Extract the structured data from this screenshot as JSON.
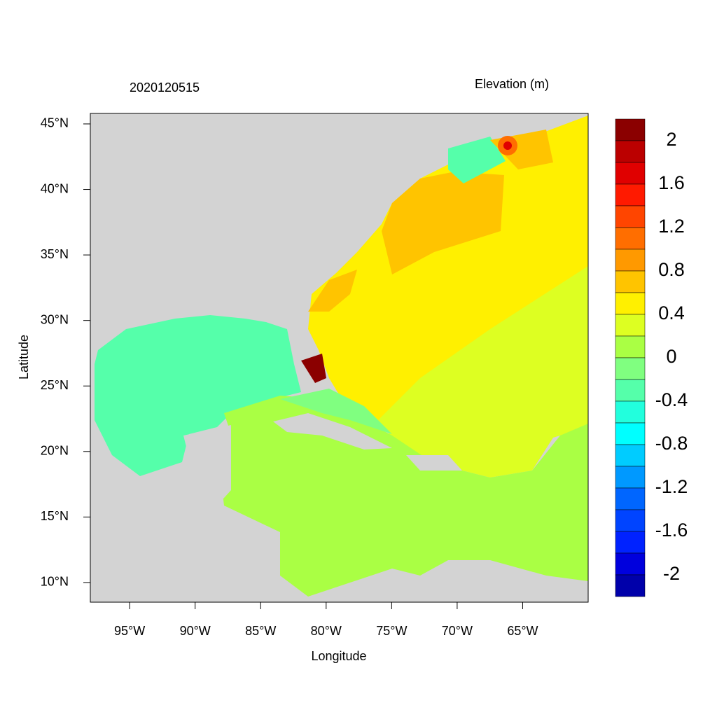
{
  "chart_data": {
    "type": "map",
    "title": "2020120515",
    "subtitle": "Elevation (m)",
    "x_label": "Longitude",
    "y_label": "Latitude",
    "xlim": [
      -98,
      -60
    ],
    "ylim": [
      8.5,
      45.8
    ],
    "xticks": [
      {
        "value": -95,
        "label": "95°W"
      },
      {
        "value": -90,
        "label": "90°W"
      },
      {
        "value": -85,
        "label": "85°W"
      },
      {
        "value": -80,
        "label": "80°W"
      },
      {
        "value": -75,
        "label": "75°W"
      },
      {
        "value": -70,
        "label": "70°W"
      },
      {
        "value": -65,
        "label": "65°W"
      }
    ],
    "yticks": [
      {
        "value": 45,
        "label": "45°N"
      },
      {
        "value": 40,
        "label": "40°N"
      },
      {
        "value": 35,
        "label": "35°N"
      },
      {
        "value": 30,
        "label": "30°N"
      },
      {
        "value": 25,
        "label": "25°N"
      },
      {
        "value": 20,
        "label": "20°N"
      },
      {
        "value": 15,
        "label": "15°N"
      },
      {
        "value": 10,
        "label": "10°N"
      }
    ],
    "colorbar": {
      "lim": [
        -2.2,
        2.2
      ],
      "colors": [
        "#8B0000",
        "#BB0000",
        "#E00000",
        "#FF1A00",
        "#FF4500",
        "#FF6E00",
        "#FF9900",
        "#FFC400",
        "#FFF000",
        "#DDFF22",
        "#AAFF44",
        "#80FF80",
        "#55FFAA",
        "#22FFDD",
        "#00FFFF",
        "#00CCFF",
        "#0099FF",
        "#0066FF",
        "#0044FF",
        "#0022FF",
        "#0000DD",
        "#0000AA"
      ],
      "ticks": [
        2,
        1.6,
        1.2,
        0.8,
        0.4,
        0,
        -0.4,
        -0.8,
        -1.2,
        -1.6,
        -2
      ]
    }
  }
}
